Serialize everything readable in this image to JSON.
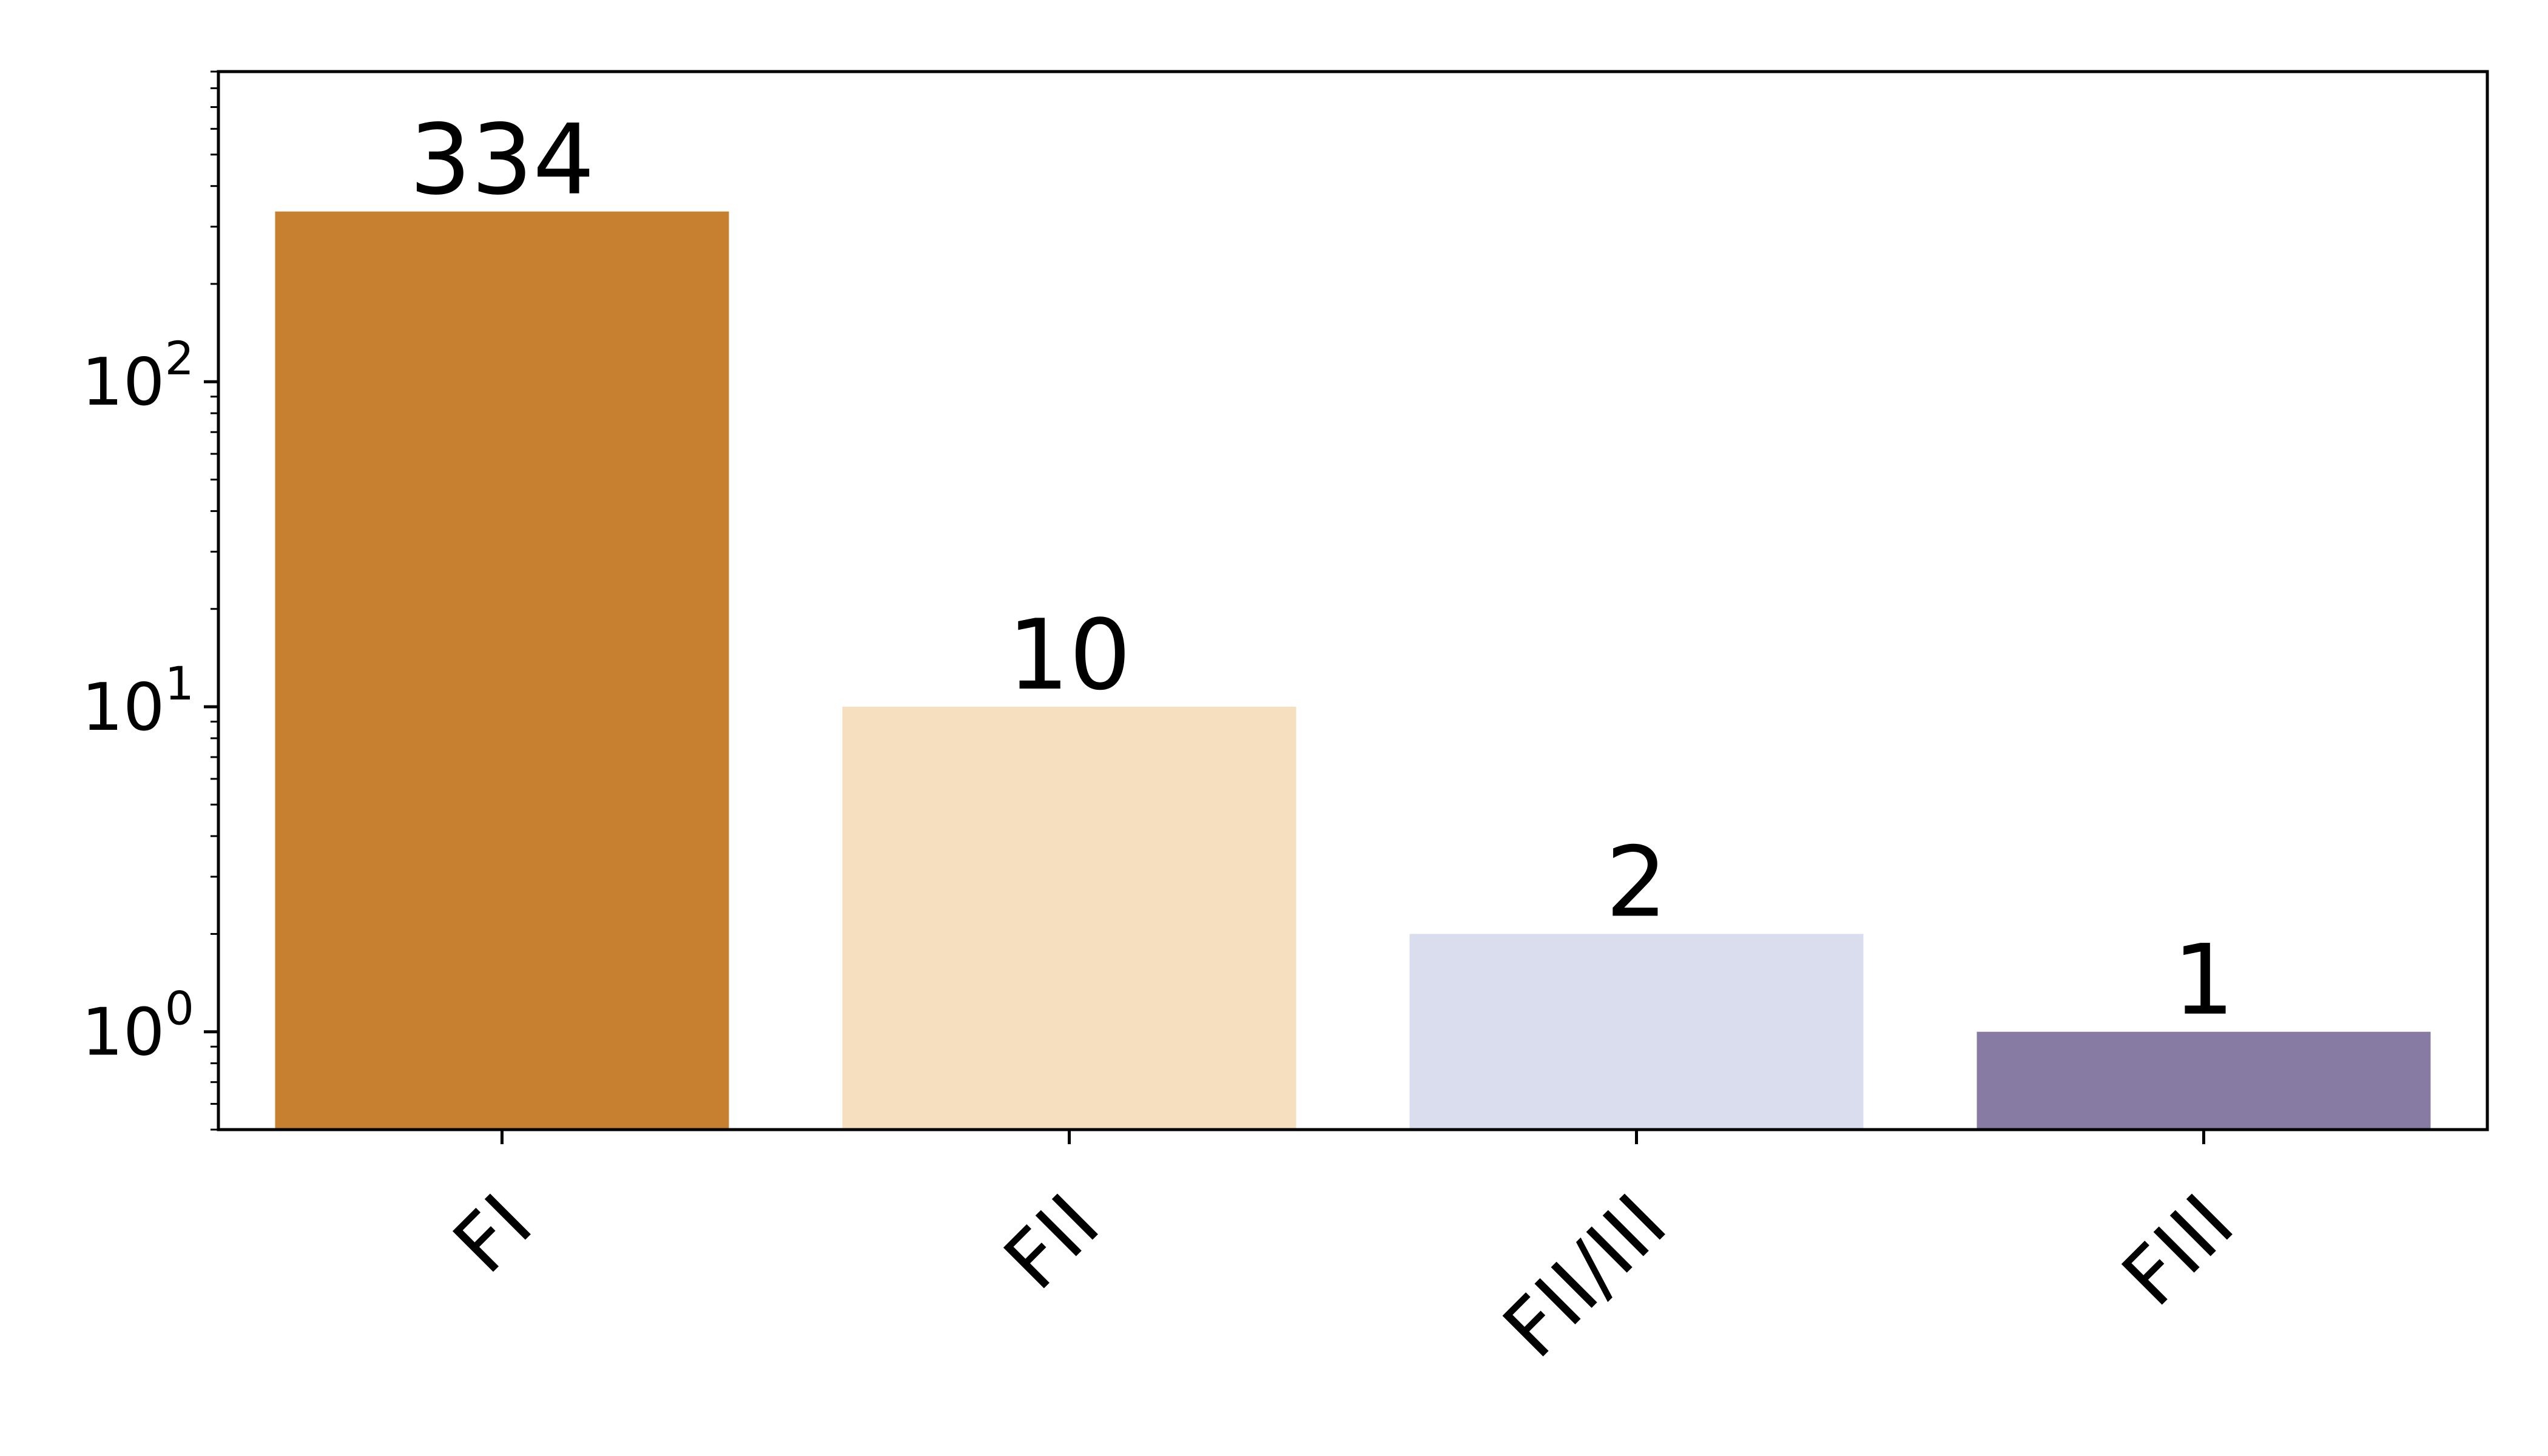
{
  "chart_data": {
    "type": "bar",
    "title": "",
    "xlabel": "",
    "ylabel": "",
    "y_scale": "log",
    "ylim": [
      0.5,
      900
    ],
    "grid": false,
    "categories": [
      "FI",
      "FII",
      "FII/III",
      "FIII"
    ],
    "values": [
      334,
      10,
      2,
      1
    ],
    "data_labels": [
      "334",
      "10",
      "2",
      "1"
    ],
    "bar_colors": [
      "#c6802f",
      "#f5dfbf",
      "#dadded",
      "#877ba4"
    ],
    "y_ticks": [
      {
        "value": 1,
        "base": "10",
        "exp": "0"
      },
      {
        "value": 10,
        "base": "10",
        "exp": "1"
      },
      {
        "value": 100,
        "base": "10",
        "exp": "2"
      }
    ]
  }
}
